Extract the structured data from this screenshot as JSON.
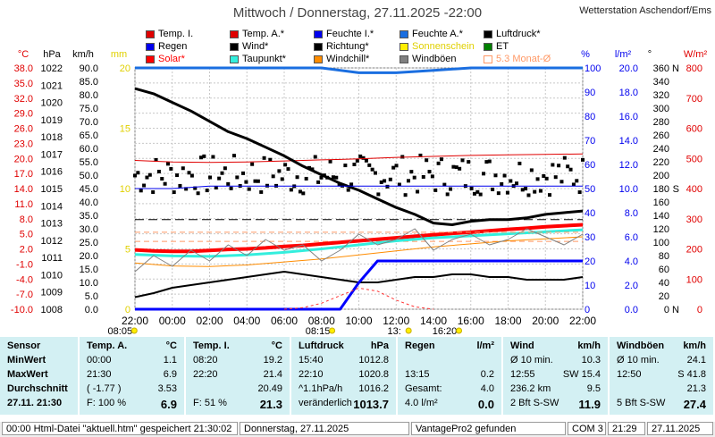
{
  "title": "Mittwoch / Donnerstag, 27.11.2025  -22:00",
  "station": "Wetterstation Aschendorf/Ems",
  "legend": [
    {
      "label": "Temp. I.",
      "color": "#e00000",
      "style": "fill"
    },
    {
      "label": "Temp. A.*",
      "color": "#e00000",
      "style": "fill"
    },
    {
      "label": "Feuchte I.*",
      "color": "#0000ee",
      "style": "fill"
    },
    {
      "label": "Feuchte A.*",
      "color": "#1a6ee0",
      "style": "fill"
    },
    {
      "label": "Luftdruck*",
      "color": "#000000",
      "style": "fill"
    },
    {
      "label": "Regen",
      "color": "#0000ee",
      "style": "fill"
    },
    {
      "label": "Wind*",
      "color": "#000000",
      "style": "fill"
    },
    {
      "label": "Richtung*",
      "color": "#000000",
      "style": "fill"
    },
    {
      "label": "Sonnenschein",
      "color": "#ffee00",
      "style": "fill",
      "text_color": "#e0d000"
    },
    {
      "label": "ET",
      "color": "#008000",
      "style": "fill"
    },
    {
      "label": "Solar*",
      "color": "#ff0000",
      "style": "fill",
      "text_color": "#ff0000"
    },
    {
      "label": "Taupunkt*",
      "color": "#33eedd",
      "style": "fill"
    },
    {
      "label": "Windchill*",
      "color": "#ff8c00",
      "style": "fill"
    },
    {
      "label": "Windböen",
      "color": "#808080",
      "style": "fill"
    },
    {
      "label": "5.3 Monat-Ø",
      "color": "#ff9966",
      "style": "outline",
      "text_color": "#ff9966"
    }
  ],
  "axis_units": {
    "temp": "°C",
    "pressure": "hPa",
    "wind": "km/h",
    "rain": "mm",
    "humidity": "%",
    "et": "l/m²",
    "dir": "°",
    "solar": "W/m²"
  },
  "chart_data": {
    "type": "line",
    "x_ticks": [
      "22:00",
      "00:00",
      "02:00",
      "04:00",
      "06:00",
      "08:00",
      "10:00",
      "12:00",
      "14:00",
      "16:00",
      "18:00",
      "20:00",
      "22:00"
    ],
    "x_hours": [
      0,
      2,
      4,
      6,
      8,
      10,
      12,
      14,
      16,
      18,
      20,
      22,
      24
    ],
    "axes": {
      "temp": {
        "min": -10,
        "max": 38,
        "ticks": [
          "38.0",
          "35.0",
          "32.0",
          "29.0",
          "26.0",
          "23.0",
          "20.0",
          "17.0",
          "14.0",
          "11.0",
          "8.0",
          "5.0",
          "2.0",
          "-1.0",
          "-4.0",
          "-7.0",
          "-10.0"
        ],
        "color": "#e00000"
      },
      "pressure": {
        "min": 1008,
        "max": 1022,
        "ticks": [
          "1022",
          "1021",
          "1020",
          "1019",
          "1018",
          "1017",
          "1016",
          "1015",
          "1014",
          "1013",
          "1012",
          "1011",
          "1010",
          "1009",
          "1008"
        ],
        "color": "#000000"
      },
      "wind": {
        "min": 0,
        "max": 90,
        "ticks": [
          "90.0",
          "85.0",
          "80.0",
          "75.0",
          "70.0",
          "65.0",
          "60.0",
          "55.0",
          "50.0",
          "45.0",
          "40.0",
          "35.0",
          "30.0",
          "25.0",
          "20.0",
          "15.0",
          "10.0",
          "5.0",
          "0.0"
        ],
        "color": "#000000"
      },
      "rain": {
        "min": 0,
        "max": 20,
        "ticks": [
          "20",
          "15",
          "10",
          "5",
          "0"
        ],
        "color": "#e0d000"
      },
      "humidity": {
        "min": 0,
        "max": 100,
        "ticks": [
          "100",
          "90",
          "80",
          "70",
          "60",
          "50",
          "40",
          "30",
          "20",
          "10",
          "0"
        ],
        "color": "#0000ee"
      },
      "et": {
        "min": 0,
        "max": 20,
        "ticks": [
          "20.0",
          "18.0",
          "16.0",
          "14.0",
          "12.0",
          "10.0",
          "8.0",
          "6.0",
          "4.0",
          "2.0",
          "0.0"
        ],
        "color": "#0000ee"
      },
      "dir": {
        "min": 0,
        "max": 360,
        "ticks": [
          "360",
          "340",
          "320",
          "300",
          "280",
          "260",
          "240",
          "220",
          "200",
          "180",
          "160",
          "140",
          "120",
          "100",
          "80",
          "60",
          "40",
          "20",
          "0"
        ],
        "dir_labels": [
          "N",
          "",
          "",
          "",
          "",
          "",
          "",
          "",
          "",
          "S",
          "",
          "",
          "",
          "",
          "",
          "",
          "",
          "",
          "N"
        ],
        "color": "#000000"
      },
      "solar": {
        "min": 0,
        "max": 800,
        "ticks": [
          "800",
          "700",
          "600",
          "500",
          "400",
          "300",
          "200",
          "100",
          "0"
        ],
        "color": "#e00000"
      }
    },
    "series": [
      {
        "name": "Temp. I.",
        "axis": "temp",
        "color": "#e00000",
        "width": 1,
        "x": [
          0,
          2,
          4,
          6,
          8,
          10,
          12,
          14,
          16,
          18,
          20,
          22,
          24
        ],
        "y": [
          19.6,
          19.3,
          19.2,
          19.3,
          19.5,
          19.7,
          19.9,
          20.2,
          20.4,
          20.6,
          20.7,
          20.8,
          20.9
        ]
      },
      {
        "name": "Temp. A.*",
        "axis": "temp",
        "color": "#ff0000",
        "width": 4,
        "x": [
          0,
          1,
          2,
          3,
          4,
          5,
          6,
          7,
          8,
          9,
          10,
          11,
          12,
          13,
          14,
          15,
          16,
          17,
          18,
          19,
          20,
          21,
          22,
          23,
          24
        ],
        "y": [
          1.8,
          1.6,
          1.5,
          1.5,
          1.7,
          1.9,
          2.0,
          2.2,
          2.5,
          2.7,
          3.0,
          3.3,
          3.6,
          3.9,
          4.2,
          4.5,
          4.8,
          5.1,
          5.3,
          5.6,
          5.9,
          6.1,
          6.4,
          6.6,
          6.8
        ]
      },
      {
        "name": "Taupunkt*",
        "axis": "temp",
        "color": "#33eedd",
        "width": 3,
        "x": [
          0,
          2,
          4,
          6,
          8,
          10,
          12,
          14,
          16,
          18,
          20,
          22,
          24
        ],
        "y": [
          0.9,
          0.6,
          0.5,
          0.8,
          1.3,
          2.0,
          2.8,
          3.6,
          4.2,
          4.6,
          5.0,
          5.4,
          5.8
        ]
      },
      {
        "name": "Windchill*",
        "axis": "temp",
        "color": "#ff8c00",
        "width": 1,
        "x": [
          0,
          2,
          4,
          6,
          8,
          10,
          12,
          14,
          16,
          18,
          20,
          22,
          24
        ],
        "y": [
          -0.8,
          -1.4,
          -1.5,
          -1.2,
          -0.6,
          0.0,
          0.8,
          1.6,
          2.4,
          3.0,
          3.6,
          4.0,
          4.4
        ]
      },
      {
        "name": "Luftdruck*",
        "axis": "pressure",
        "color": "#000000",
        "width": 3,
        "x": [
          0,
          1,
          2,
          3,
          4,
          5,
          6,
          7,
          8,
          9,
          10,
          11,
          12,
          13,
          14,
          15,
          16,
          17,
          18,
          19,
          20,
          21,
          22,
          23,
          24
        ],
        "y": [
          1020.8,
          1020.5,
          1020.0,
          1019.5,
          1018.9,
          1018.3,
          1017.9,
          1017.4,
          1016.9,
          1016.3,
          1015.8,
          1015.3,
          1014.9,
          1014.4,
          1013.9,
          1013.5,
          1013.0,
          1012.9,
          1013.1,
          1013.2,
          1013.2,
          1013.3,
          1013.5,
          1013.6,
          1013.7
        ]
      },
      {
        "name": "Wind*",
        "axis": "wind",
        "color": "#000000",
        "width": 2,
        "x": [
          0,
          1,
          2,
          3,
          4,
          5,
          6,
          7,
          8,
          9,
          10,
          11,
          12,
          13,
          14,
          15,
          16,
          17,
          18,
          19,
          20,
          21,
          22,
          23,
          24
        ],
        "y": [
          4.5,
          6,
          8,
          9,
          10,
          11,
          12,
          13,
          14,
          13,
          12,
          11,
          10,
          10,
          11,
          12,
          12,
          13,
          13,
          12,
          12,
          11,
          11,
          11,
          12
        ]
      },
      {
        "name": "Windböen",
        "axis": "wind",
        "color": "#808080",
        "width": 1,
        "x": [
          0,
          1,
          2,
          3,
          4,
          5,
          6,
          7,
          8,
          9,
          10,
          11,
          12,
          13,
          14,
          15,
          16,
          17,
          18,
          19,
          20,
          21,
          22,
          23,
          24
        ],
        "y": [
          14,
          20,
          16,
          22,
          18,
          24,
          20,
          26,
          22,
          24,
          18,
          22,
          28,
          24,
          26,
          30,
          22,
          26,
          28,
          24,
          26,
          30,
          27,
          24,
          28
        ]
      },
      {
        "name": "Feuchte A.*",
        "axis": "humidity",
        "color": "#1a6ee0",
        "width": 3,
        "x": [
          0,
          2,
          4,
          6,
          8,
          10,
          12,
          14,
          16,
          18,
          20,
          22,
          24
        ],
        "y": [
          100,
          100,
          100,
          100,
          100,
          100,
          98,
          98,
          99,
          100,
          100,
          100,
          100
        ]
      },
      {
        "name": "Feuchte I.*",
        "axis": "humidity",
        "color": "#0000ee",
        "width": 1,
        "x": [
          0,
          2,
          4,
          6,
          8,
          10,
          12,
          14,
          16,
          18,
          20,
          22,
          24
        ],
        "y": [
          50,
          50,
          51,
          51,
          51,
          51,
          51,
          51,
          51,
          51,
          51,
          51,
          51
        ]
      },
      {
        "name": "Regen",
        "axis": "rain",
        "color": "#0000ff",
        "width": 3,
        "x": [
          0,
          11,
          12,
          13,
          14,
          16,
          18,
          20,
          22,
          24
        ],
        "y": [
          0,
          0,
          2.2,
          4.0,
          4.0,
          4.0,
          4.0,
          4.0,
          4.0,
          4.0
        ]
      },
      {
        "name": "Solar*",
        "axis": "solar",
        "color": "#ff3333",
        "width": 1,
        "dash": "3,3",
        "x": [
          8,
          9,
          10,
          11,
          12,
          13,
          14,
          15,
          16
        ],
        "y": [
          0,
          5,
          20,
          45,
          70,
          60,
          30,
          8,
          0
        ]
      },
      {
        "name": "5.3 Monat-Ø",
        "axis": "temp",
        "color": "#ff9966",
        "width": 1,
        "dash": "6,4",
        "x": [
          0,
          24
        ],
        "y": [
          5.3,
          5.3
        ]
      }
    ],
    "direction_points": {
      "axis": "dir",
      "color": "#000000",
      "x_start": 0,
      "x_end": 24,
      "count": 150,
      "mean": 200,
      "spread": 30
    },
    "reference_lines": [
      {
        "axis": "pressure",
        "value": 1013.2,
        "color": "#000000",
        "dash": "10,5"
      },
      {
        "axis": "temp",
        "value": 3.5,
        "color": "#ff9966",
        "dash": "6,4"
      }
    ],
    "sun_markers": [
      {
        "label": "08:05",
        "x": -0.8
      },
      {
        "label": "08:15",
        "x": 9.8
      },
      {
        "label": "13:",
        "x": 13.9
      },
      {
        "label": "16:20",
        "x": 16.6
      }
    ]
  },
  "panels": [
    {
      "rows": [
        [
          "Sensor",
          "",
          ""
        ],
        [
          "MinWert",
          "",
          ""
        ],
        [
          "MaxWert",
          "",
          ""
        ],
        [
          "Durchschnitt",
          "",
          ""
        ],
        [
          "27.11. 21:30",
          "",
          ""
        ]
      ]
    },
    {
      "head": [
        "Temp. A.",
        "°C"
      ],
      "rows": [
        [
          "00:00",
          "1.1"
        ],
        [
          "21:30",
          "6.9"
        ],
        [
          "( -1.77 )",
          "3.53"
        ],
        [
          "F: 100 %",
          "6.9"
        ]
      ]
    },
    {
      "head": [
        "Temp. I.",
        "°C"
      ],
      "rows": [
        [
          "08:20",
          "19.2"
        ],
        [
          "22:20",
          "21.4"
        ],
        [
          "",
          "20.49"
        ],
        [
          "F: 51 %",
          "21.3"
        ]
      ]
    },
    {
      "head": [
        "Luftdruck",
        "hPa"
      ],
      "rows": [
        [
          "15:40",
          "1012.8"
        ],
        [
          "22:10",
          "1020.8"
        ],
        [
          "^1.1hPa/h",
          "1016.2"
        ],
        [
          "veränderlich",
          "1013.7"
        ]
      ]
    },
    {
      "head": [
        "Regen",
        "l/m²"
      ],
      "rows": [
        [
          "",
          ""
        ],
        [
          "13:15",
          "0.2"
        ],
        [
          "Gesamt:",
          "4.0"
        ],
        [
          "4.0 l/m²",
          "0.0"
        ]
      ]
    },
    {
      "head": [
        "Wind",
        "km/h"
      ],
      "rows": [
        [
          "Ø 10 min.",
          "10.3"
        ],
        [
          "12:55",
          "SW 15.4"
        ],
        [
          "236.2 km",
          "9.5"
        ],
        [
          "2 Bft S-SW",
          "11.9"
        ]
      ]
    },
    {
      "head": [
        "Windböen",
        "km/h"
      ],
      "rows": [
        [
          "Ø 10 min.",
          "24.1"
        ],
        [
          "12:50",
          "S 41.8"
        ],
        [
          "",
          "21.3"
        ],
        [
          "5 Bft S-SW",
          "27.4"
        ]
      ]
    }
  ],
  "status": [
    "00:00  Html-Datei  \"aktuell.htm\"  gespeichert 21:30:02",
    "Donnerstag, 27.11.2025",
    "VantagePro2 gefunden",
    "COM 3",
    "21:29",
    "27.11.2025"
  ]
}
